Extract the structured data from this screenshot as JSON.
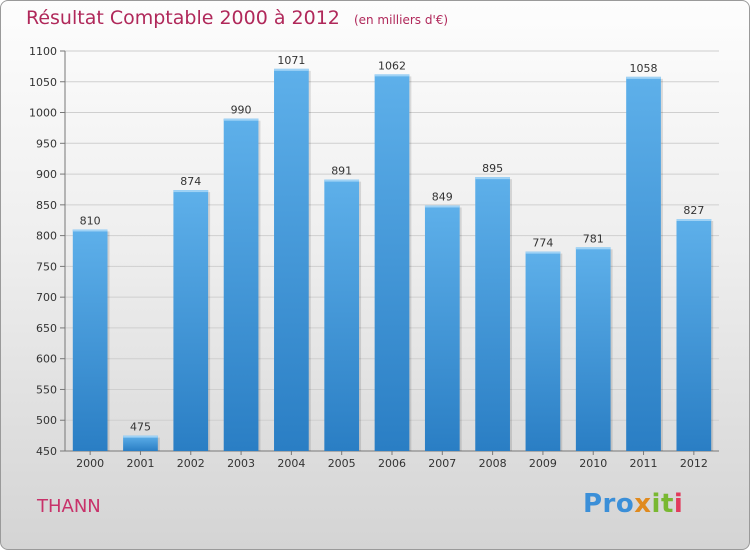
{
  "header": {
    "title": "Résultat Comptable 2000 à 2012",
    "subtitle": "(en milliers d'€)"
  },
  "footer": {
    "city": "THANN",
    "logo": {
      "text": "Proxiti",
      "parts": [
        "Pro",
        "x",
        "it",
        "i"
      ]
    }
  },
  "colors": {
    "bar_top": "#5eb0ea",
    "bar_bottom": "#2a7ec4",
    "title": "#b0285a"
  },
  "chart_data": {
    "type": "bar",
    "title": "Résultat Comptable 2000 à 2012",
    "subtitle": "(en milliers d'€)",
    "xlabel": "",
    "ylabel": "",
    "categories": [
      "2000",
      "2001",
      "2002",
      "2003",
      "2004",
      "2005",
      "2006",
      "2007",
      "2008",
      "2009",
      "2010",
      "2011",
      "2012"
    ],
    "values": [
      810,
      475,
      874,
      990,
      1071,
      891,
      1062,
      849,
      895,
      774,
      781,
      1058,
      827
    ],
    "ylim": [
      450,
      1100
    ],
    "yticks": [
      450,
      500,
      550,
      600,
      650,
      700,
      750,
      800,
      850,
      900,
      950,
      1000,
      1050,
      1100
    ],
    "grid": true,
    "legend": "none"
  }
}
